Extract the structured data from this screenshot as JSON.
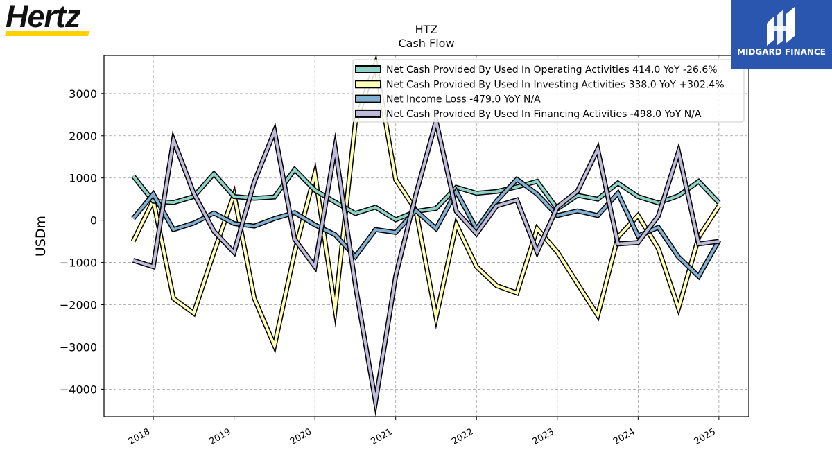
{
  "logos": {
    "left": {
      "text": "Hertz"
    },
    "right": {
      "text": "MIDGARD FINANCE"
    }
  },
  "chart_data": {
    "type": "line",
    "title": "HTZ",
    "subtitle": "Cash Flow",
    "xlabel": "",
    "ylabel": "USDm",
    "ylim": [
      -4650,
      3900
    ],
    "xlim": [
      2017.39,
      2025.37
    ],
    "grid": true,
    "legend_position": "top-right",
    "x_ticks": [
      2018,
      2019,
      2020,
      2021,
      2022,
      2023,
      2024,
      2025
    ],
    "x_tick_labels": [
      "2018",
      "2019",
      "2020",
      "2021",
      "2022",
      "2023",
      "2024",
      "2025"
    ],
    "y_ticks": [
      3000,
      2000,
      1000,
      0,
      -1000,
      -2000,
      -3000,
      -4000
    ],
    "y_tick_labels": [
      "3000",
      "2000",
      "1000",
      "0",
      "−1000",
      "−2000",
      "−3000",
      "−4000"
    ],
    "x": [
      2017.75,
      2018.0,
      2018.25,
      2018.5,
      2018.75,
      2019.0,
      2019.25,
      2019.5,
      2019.75,
      2020.0,
      2020.25,
      2020.5,
      2020.75,
      2021.0,
      2021.25,
      2021.5,
      2021.75,
      2022.0,
      2022.25,
      2022.5,
      2022.75,
      2023.0,
      2023.25,
      2023.5,
      2023.75,
      2024.0,
      2024.25,
      2024.5,
      2024.75,
      2025.0
    ],
    "series": [
      {
        "name": "Net Cash Provided By Used In Operating Activities",
        "legend_label": "Net Cash Provided By Used In Operating Activities  414.0 YoY -26.6%",
        "color": "#8dd3c7",
        "values": [
          1050,
          450,
          420,
          560,
          1100,
          560,
          520,
          550,
          1200,
          710,
          430,
          160,
          310,
          10,
          210,
          280,
          780,
          640,
          680,
          790,
          920,
          270,
          590,
          500,
          880,
          560,
          410,
          580,
          920,
          414
        ]
      },
      {
        "name": "Net Cash Provided By Used In Investing Activities",
        "legend_label": "Net Cash Provided By Used In Investing Activities  338.0 YoY +302.4%",
        "color": "#ffffb3",
        "values": [
          -500,
          470,
          -1850,
          -2200,
          -760,
          610,
          -1850,
          -2970,
          -750,
          1100,
          -2100,
          2300,
          3700,
          960,
          240,
          -2300,
          -100,
          -1100,
          -1550,
          -1720,
          -200,
          -750,
          -1500,
          -2250,
          -400,
          110,
          -670,
          -2080,
          -400,
          338
        ]
      },
      {
        "name": "Net Income Loss",
        "legend_label": "Net Income Loss  -479.0 YoY N/A",
        "color": "#80b1d3",
        "values": [
          40,
          620,
          -220,
          -70,
          170,
          -80,
          -140,
          40,
          180,
          -110,
          -340,
          -860,
          -220,
          -290,
          230,
          -200,
          680,
          -210,
          460,
          970,
          620,
          110,
          220,
          110,
          640,
          -370,
          -170,
          -870,
          -1330,
          -479
        ]
      },
      {
        "name": "Net Cash Provided By Used In Financing Activities",
        "legend_label": "Net Cash Provided By Used In Financing Activities  -498.0 YoY N/A",
        "color": "#bebada",
        "values": [
          -950,
          -1100,
          1900,
          640,
          -260,
          -760,
          910,
          2110,
          -450,
          -1100,
          1720,
          -1520,
          -4300,
          -1320,
          610,
          2350,
          210,
          -320,
          340,
          480,
          -750,
          310,
          690,
          1680,
          -560,
          -530,
          100,
          1620,
          -560,
          -498
        ]
      }
    ]
  }
}
